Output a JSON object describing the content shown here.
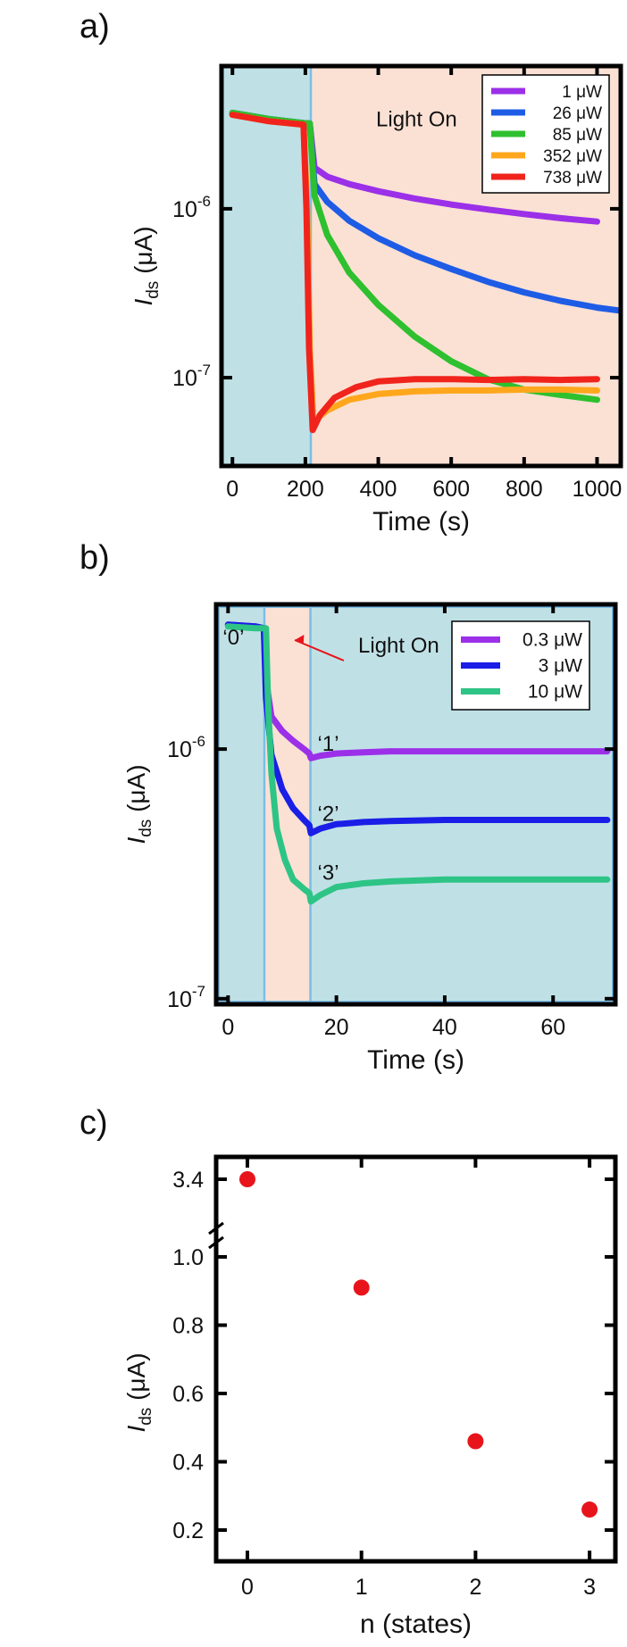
{
  "panels": [
    {
      "id": "a",
      "label": "a)"
    },
    {
      "id": "b",
      "label": "b)"
    },
    {
      "id": "c",
      "label": "c)"
    }
  ],
  "chart_data": [
    {
      "panel": "a)",
      "type": "line",
      "xlabel": "Time (s)",
      "ylabel": "I",
      "ylabel_sub": "ds",
      "ylabel_unit": " (μA)",
      "yscale": "log",
      "xlim": [
        -30,
        1065
      ],
      "ylim": [
        3e-08,
        7e-06
      ],
      "xticks": [
        0,
        200,
        400,
        600,
        800,
        1000
      ],
      "yticks": [
        {
          "v": 1e-06,
          "base": "10",
          "exp": "-6"
        },
        {
          "v": 1e-07,
          "base": "10",
          "exp": "-7"
        }
      ],
      "background_regions": [
        {
          "from": -30,
          "to": 215,
          "color": "#bfe1e6"
        },
        {
          "from": 215,
          "to": 1065,
          "color": "#fbe1d4"
        }
      ],
      "region_lines": [
        215
      ],
      "annotations": [
        {
          "text": "Light On",
          "x": 505,
          "y": 3.4e-06
        }
      ],
      "legend": "top-right",
      "series": [
        {
          "name": "1 μW",
          "color": "#9b30e8",
          "x": [
            0,
            100,
            205,
            212,
            225,
            260,
            320,
            400,
            500,
            600,
            700,
            800,
            900,
            1000
          ],
          "y": [
            3.7e-06,
            3.4e-06,
            3.2e-06,
            3.2e-06,
            1.75e-06,
            1.55e-06,
            1.4e-06,
            1.27e-06,
            1.15e-06,
            1.06e-06,
            9.9e-07,
            9.3e-07,
            8.8e-07,
            8.4e-07
          ]
        },
        {
          "name": "26 μW",
          "color": "#1e5ce6",
          "x": [
            0,
            100,
            205,
            212,
            225,
            260,
            320,
            400,
            500,
            600,
            700,
            800,
            900,
            1000,
            1060
          ],
          "y": [
            3.7e-06,
            3.4e-06,
            3.2e-06,
            3.2e-06,
            1.4e-06,
            1.1e-06,
            8.5e-07,
            6.7e-07,
            5.3e-07,
            4.4e-07,
            3.7e-07,
            3.2e-07,
            2.85e-07,
            2.6e-07,
            2.5e-07
          ]
        },
        {
          "name": "85 μW",
          "color": "#2ec02e",
          "x": [
            0,
            100,
            205,
            212,
            225,
            260,
            320,
            400,
            500,
            600,
            700,
            800,
            900,
            1000
          ],
          "y": [
            3.7e-06,
            3.4e-06,
            3.2e-06,
            3.2e-06,
            1.2e-06,
            7e-07,
            4.2e-07,
            2.7e-07,
            1.75e-07,
            1.25e-07,
            9.8e-08,
            8.5e-08,
            7.9e-08,
            7.4e-08
          ]
        },
        {
          "name": "352 μW",
          "color": "#ffa71c",
          "x": [
            0,
            100,
            195,
            205,
            212,
            222,
            260,
            320,
            400,
            500,
            600,
            700,
            800,
            900,
            1000
          ],
          "y": [
            3.6e-06,
            3.3e-06,
            3.15e-06,
            1e-06,
            1.5e-07,
            5.5e-08,
            6.4e-08,
            7.4e-08,
            8e-08,
            8.3e-08,
            8.4e-08,
            8.4e-08,
            8.5e-08,
            8.5e-08,
            8.4e-08
          ]
        },
        {
          "name": "738 μW",
          "color": "#f0241c",
          "x": [
            0,
            100,
            195,
            203,
            210,
            220,
            240,
            280,
            340,
            400,
            500,
            600,
            700,
            800,
            900,
            1000
          ],
          "y": [
            3.6e-06,
            3.3e-06,
            3.15e-06,
            1e-06,
            1.5e-07,
            4.9e-08,
            6e-08,
            7.6e-08,
            8.8e-08,
            9.5e-08,
            9.8e-08,
            9.8e-08,
            9.7e-08,
            9.8e-08,
            9.7e-08,
            9.8e-08
          ]
        }
      ]
    },
    {
      "panel": "b)",
      "type": "line",
      "xlabel": "Time (s)",
      "ylabel": "I",
      "ylabel_sub": "ds",
      "ylabel_unit": " (μA)",
      "yscale": "log",
      "xlim": [
        -2.2,
        71.5
      ],
      "ylim": [
        9.5e-08,
        3.8e-06
      ],
      "xticks": [
        0,
        20,
        40,
        60
      ],
      "yticks": [
        {
          "v": 1e-06,
          "base": "10",
          "exp": "-6"
        },
        {
          "v": 1e-07,
          "base": "10",
          "exp": "-7"
        }
      ],
      "background_regions": [
        {
          "from": -2.2,
          "to": 6.7,
          "color": "#bfe1e6"
        },
        {
          "from": 6.7,
          "to": 15.2,
          "color": "#fbe1d4"
        },
        {
          "from": 15.2,
          "to": 71.5,
          "color": "#bfe1e6"
        }
      ],
      "region_lines": [
        6.7,
        15.2
      ],
      "annotations": [
        {
          "text": "Light On",
          "x": 31.5,
          "y": 2.6e-06
        },
        {
          "text": "‘0’",
          "x": 1.0,
          "y": 2.8e-06
        },
        {
          "text": "‘1’",
          "x": 18.5,
          "y": 1.05e-06
        },
        {
          "text": "‘2’",
          "x": 18.5,
          "y": 5.5e-07
        },
        {
          "text": "‘3’",
          "x": 18.5,
          "y": 3.2e-07
        }
      ],
      "legend": "top-right",
      "series": [
        {
          "name": "0.3 μW",
          "color": "#9b30e8",
          "x": [
            0,
            5,
            6.6,
            7.0,
            8.0,
            10,
            12,
            14,
            15,
            15.3,
            17,
            20,
            25,
            30,
            40,
            50,
            60,
            70
          ],
          "y": [
            3.15e-06,
            3.1e-06,
            3.05e-06,
            1.9e-06,
            1.35e-06,
            1.18e-06,
            1.08e-06,
            1e-06,
            9.6e-07,
            9.2e-07,
            9.4e-07,
            9.6e-07,
            9.7e-07,
            9.8e-07,
            9.8e-07,
            9.8e-07,
            9.8e-07,
            9.8e-07
          ]
        },
        {
          "name": "3 μW",
          "color": "#1a1ee6",
          "x": [
            0,
            5,
            6.6,
            7.0,
            8.0,
            10,
            12,
            14,
            15,
            15.3,
            17,
            20,
            25,
            30,
            40,
            50,
            60,
            70
          ],
          "y": [
            3.15e-06,
            3.1e-06,
            3.05e-06,
            1.6e-06,
            9.5e-07,
            6.9e-07,
            5.8e-07,
            5.2e-07,
            4.95e-07,
            4.6e-07,
            4.8e-07,
            5e-07,
            5.1e-07,
            5.15e-07,
            5.2e-07,
            5.2e-07,
            5.2e-07,
            5.2e-07
          ]
        },
        {
          "name": "10 μW",
          "color": "#2ec485",
          "x": [
            0,
            5,
            7,
            7.4,
            8.0,
            9.0,
            10.5,
            12,
            14,
            15,
            15.3,
            17,
            20,
            25,
            30,
            40,
            50,
            60,
            70
          ],
          "y": [
            3.1e-06,
            3.05e-06,
            3.05e-06,
            1.5e-06,
            8e-07,
            4.8e-07,
            3.6e-07,
            3e-07,
            2.75e-07,
            2.65e-07,
            2.45e-07,
            2.6e-07,
            2.8e-07,
            2.9e-07,
            2.95e-07,
            3e-07,
            3e-07,
            3e-07,
            3e-07
          ]
        }
      ]
    },
    {
      "panel": "c)",
      "type": "scatter",
      "xlabel": "n (states)",
      "ylabel": "I",
      "ylabel_sub": "ds",
      "ylabel_unit": " (μA)",
      "axis_break": "between 1.0 and 3.4",
      "xticks": [
        0,
        1,
        2,
        3
      ],
      "yticks": [
        0.2,
        0.4,
        0.6,
        0.8,
        1.0,
        3.4
      ],
      "ytick_labels": [
        "0.2",
        "0.4",
        "0.6",
        "0.8",
        "1.0",
        "3.4"
      ],
      "point_color": "#e8141c",
      "x": [
        0,
        1,
        2,
        3
      ],
      "y": [
        3.4,
        0.91,
        0.46,
        0.26
      ]
    }
  ]
}
